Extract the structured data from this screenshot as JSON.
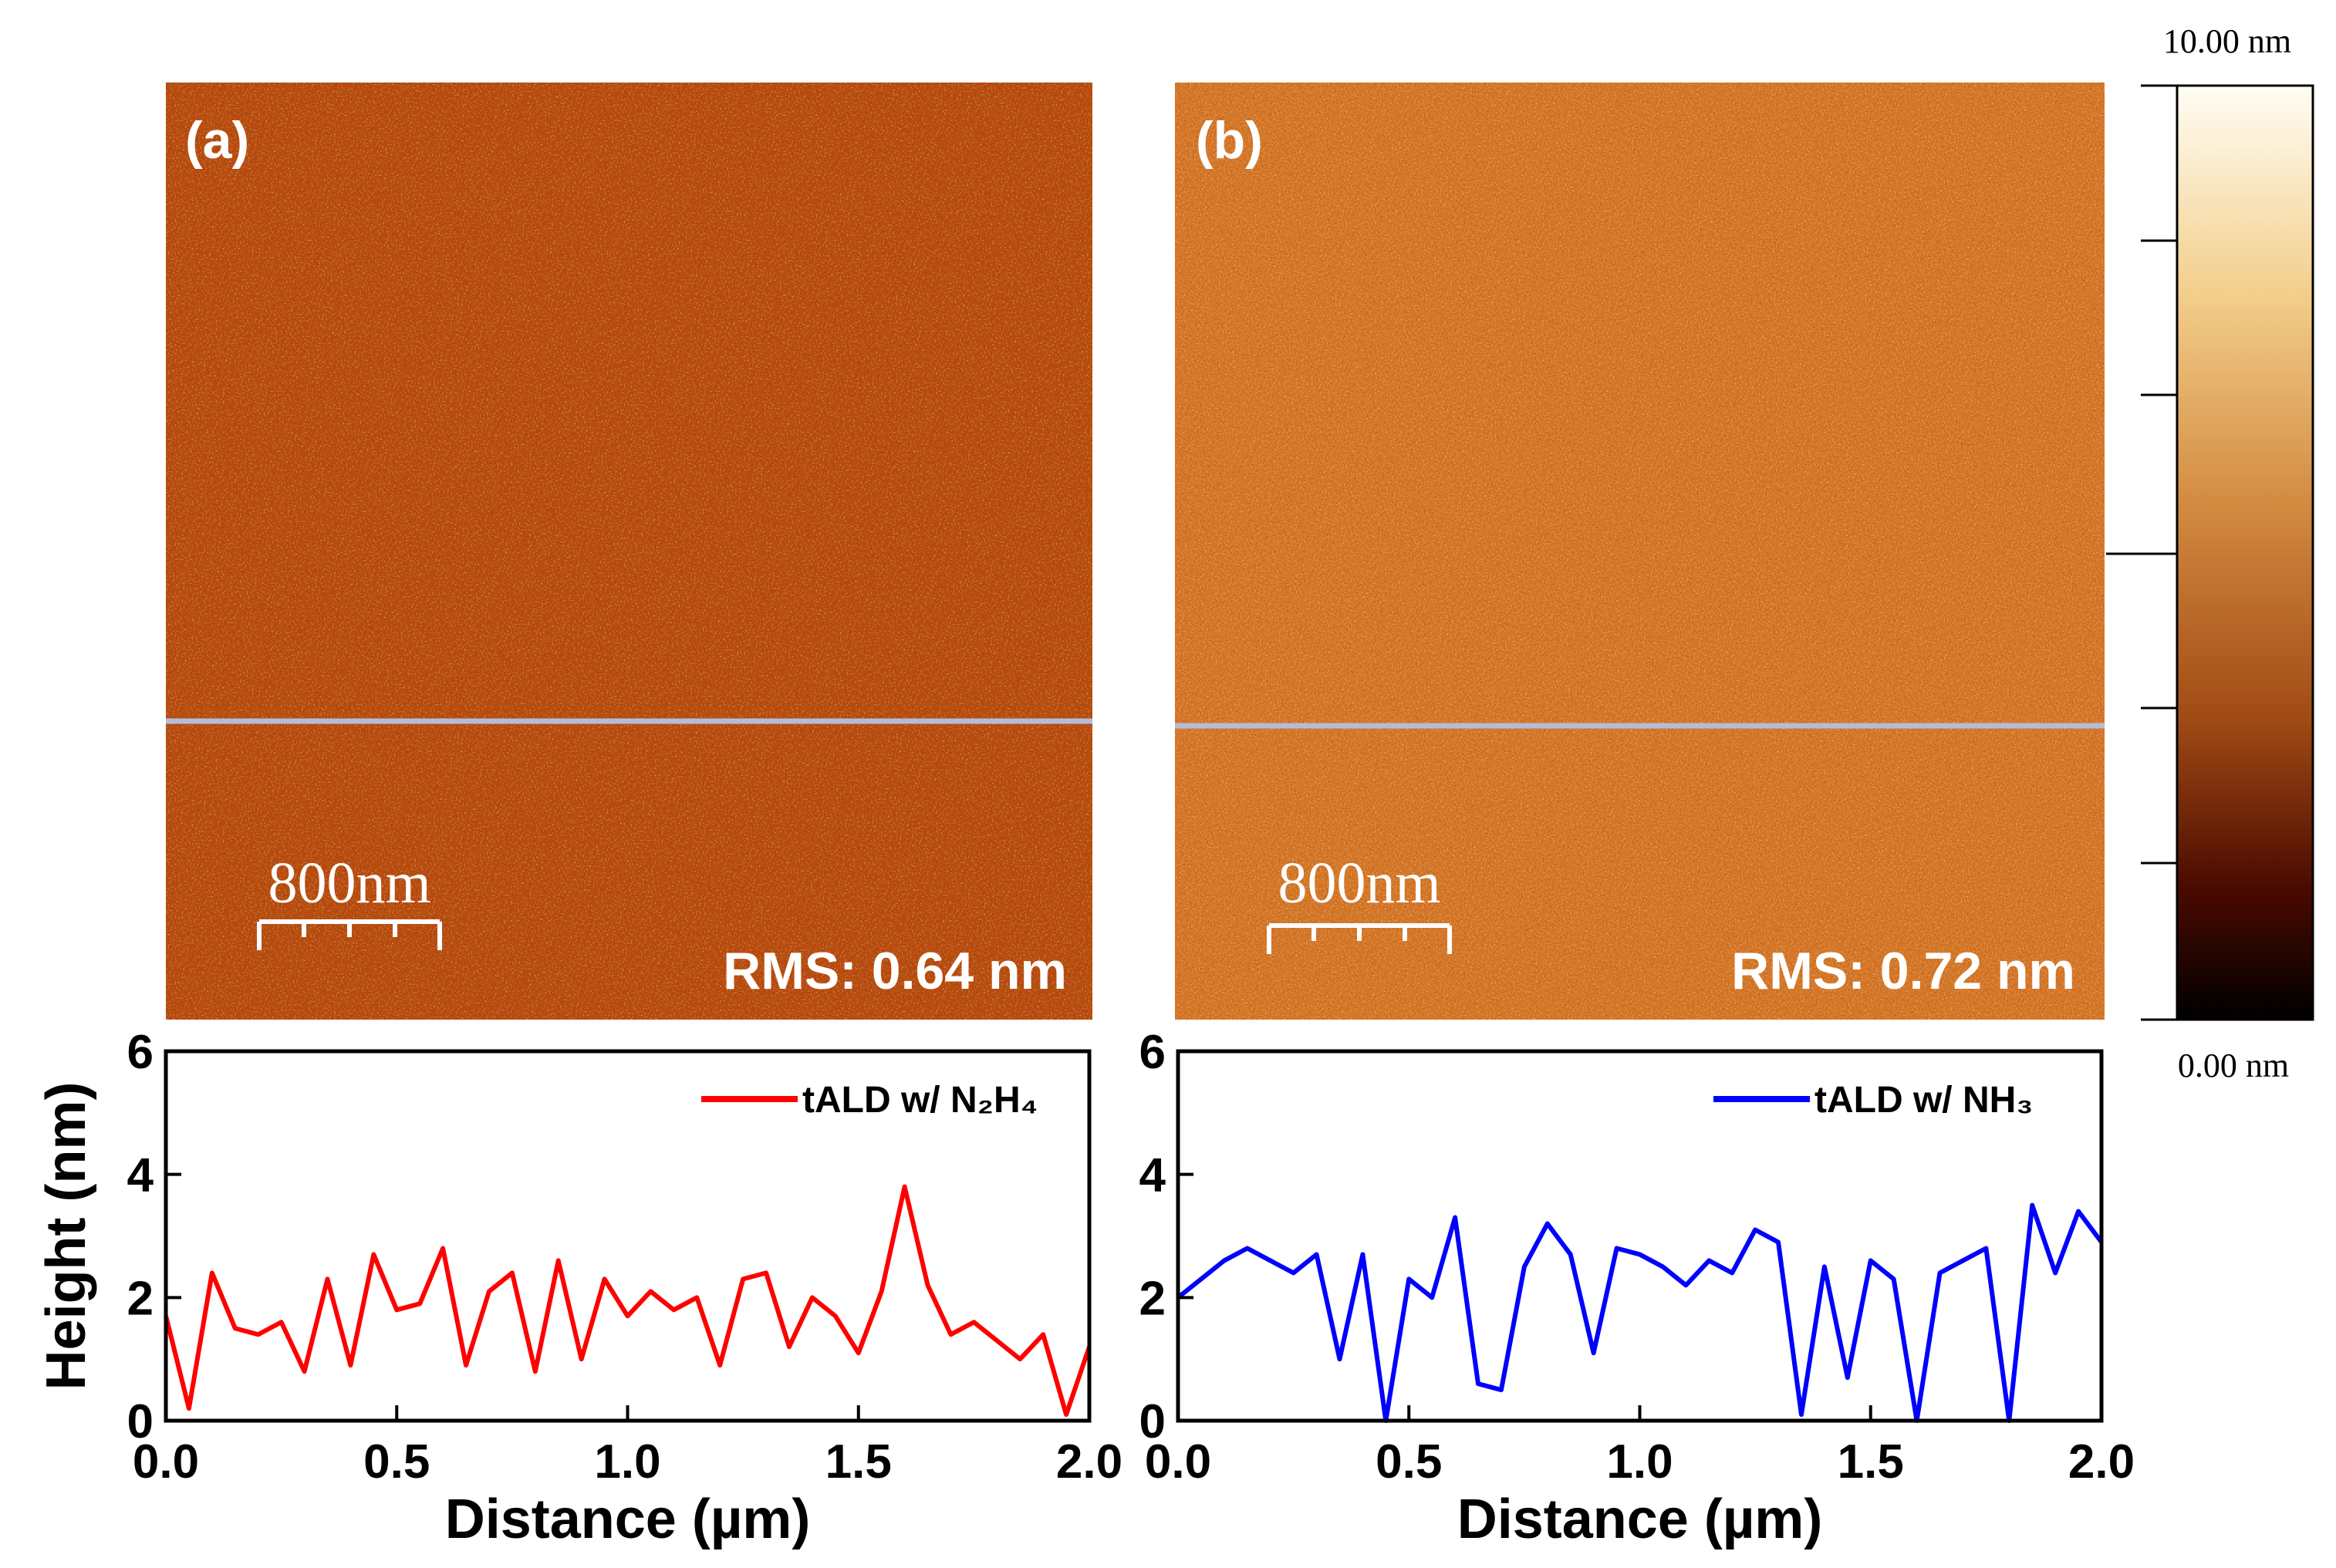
{
  "images": [
    {
      "label": "(a)",
      "rms": "RMS: 0.64 nm",
      "scale_bar": "800nm"
    },
    {
      "label": "(b)",
      "rms": "RMS: 0.72 nm",
      "scale_bar": "800nm"
    }
  ],
  "colorbar": {
    "max_label": "10.00 nm",
    "min_label": "0.00 nm"
  },
  "chart_data": [
    {
      "type": "line",
      "ylabel": "Height (nm)",
      "xlabel": "Distance (µm)",
      "xlim": [
        0,
        2
      ],
      "xticks": [
        {
          "value": 0,
          "label": "0.0"
        },
        0.5,
        {
          "value": 1,
          "label": "1.0"
        },
        1.5,
        {
          "value": 2,
          "label": "2.0"
        }
      ],
      "ylim": [
        0,
        6
      ],
      "yticks": [
        0,
        2,
        4,
        6
      ],
      "legend": "upper right",
      "x": [
        0,
        0.05,
        0.1,
        0.15,
        0.2,
        0.25,
        0.3,
        0.35,
        0.4,
        0.45,
        0.5,
        0.55,
        0.6,
        0.65,
        0.7,
        0.75,
        0.8,
        0.85,
        0.9,
        0.95,
        1,
        1.05,
        1.1,
        1.15,
        1.2,
        1.25,
        1.3,
        1.35,
        1.4,
        1.45,
        1.5,
        1.55,
        1.6,
        1.65,
        1.7,
        1.75,
        1.8,
        1.85,
        1.9,
        1.95,
        2
      ],
      "series": [
        {
          "name": "tALD w/ N₂H₄",
          "color": "#ff0000",
          "values": [
            1.7,
            0.2,
            2.4,
            1.5,
            1.4,
            1.6,
            0.8,
            2.3,
            0.9,
            2.7,
            1.8,
            1.9,
            2.8,
            0.9,
            2.1,
            2.4,
            0.8,
            2.6,
            1.0,
            2.3,
            1.7,
            2.1,
            1.8,
            2.0,
            0.9,
            2.3,
            2.4,
            1.2,
            2.0,
            1.7,
            1.1,
            2.1,
            3.8,
            2.2,
            1.4,
            1.6,
            1.3,
            1.0,
            1.4,
            0.1,
            1.2
          ]
        }
      ]
    },
    {
      "type": "line",
      "xlabel": "Distance (µm)",
      "xlim": [
        0,
        2
      ],
      "xticks": [
        {
          "value": 0,
          "label": "0.0"
        },
        0.5,
        {
          "value": 1,
          "label": "1.0"
        },
        1.5,
        {
          "value": 2,
          "label": "2.0"
        }
      ],
      "ylim": [
        0,
        6
      ],
      "yticks": [
        0,
        2,
        4,
        6
      ],
      "legend": "upper right",
      "x": [
        0,
        0.05,
        0.1,
        0.15,
        0.2,
        0.25,
        0.3,
        0.35,
        0.4,
        0.45,
        0.5,
        0.55,
        0.6,
        0.65,
        0.7,
        0.75,
        0.8,
        0.85,
        0.9,
        0.95,
        1,
        1.05,
        1.1,
        1.15,
        1.2,
        1.25,
        1.3,
        1.35,
        1.4,
        1.45,
        1.5,
        1.55,
        1.6,
        1.65,
        1.7,
        1.75,
        1.8,
        1.85,
        1.9,
        1.95,
        2
      ],
      "series": [
        {
          "name": "tALD w/ NH₃",
          "color": "#0000ff",
          "values": [
            2.0,
            2.3,
            2.6,
            2.8,
            2.6,
            2.4,
            2.7,
            1.0,
            2.7,
            0.0,
            2.3,
            2.0,
            3.3,
            0.6,
            0.5,
            2.5,
            3.2,
            2.7,
            1.1,
            2.8,
            2.7,
            2.5,
            2.2,
            2.6,
            2.4,
            3.1,
            2.9,
            0.1,
            2.5,
            0.7,
            2.6,
            2.3,
            0.0,
            2.4,
            2.6,
            2.8,
            0.0,
            3.5,
            2.4,
            3.4,
            2.9
          ]
        }
      ]
    }
  ]
}
